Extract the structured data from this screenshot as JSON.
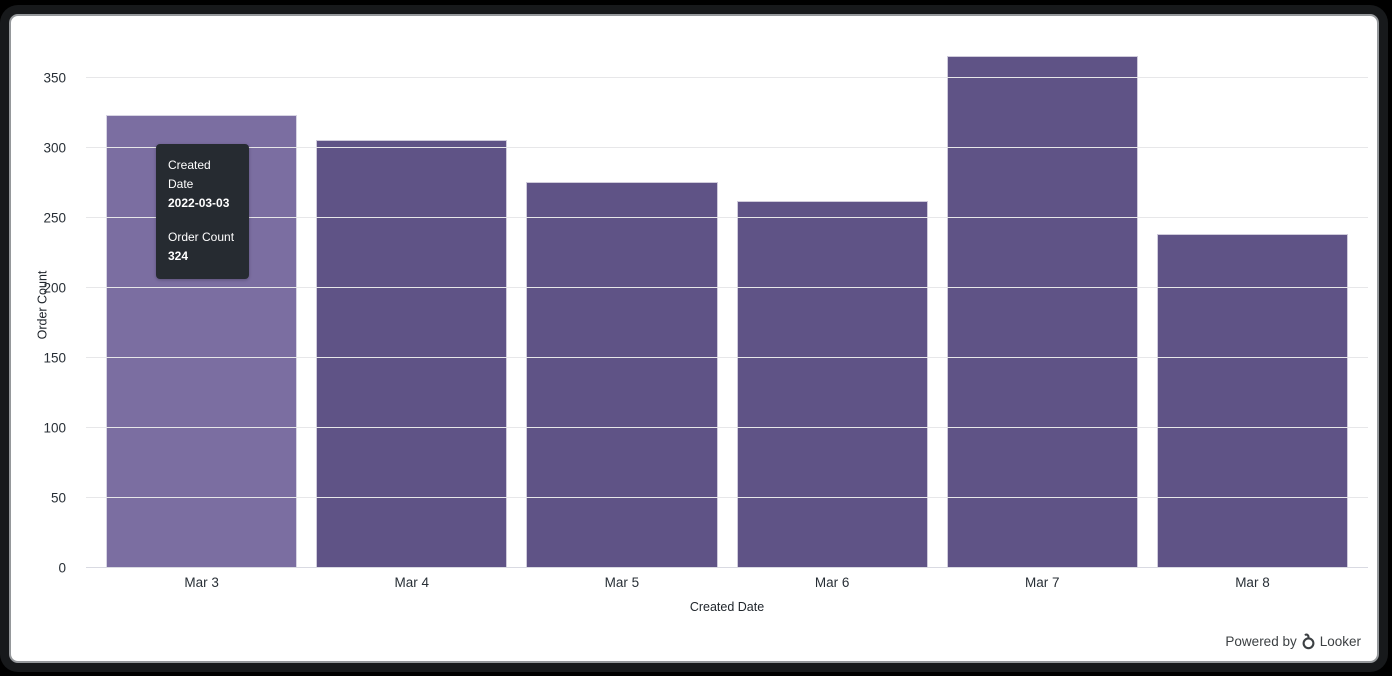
{
  "chart_data": {
    "type": "bar",
    "title": "",
    "categories": [
      "Mar 3",
      "Mar 4",
      "Mar 5",
      "Mar 6",
      "Mar 7",
      "Mar 8"
    ],
    "values": [
      324,
      306,
      276,
      262,
      366,
      239
    ],
    "xlabel": "Created Date",
    "ylabel": "Order Count",
    "ylim": [
      0,
      350
    ],
    "yticks": [
      0,
      50,
      100,
      150,
      200,
      250,
      300,
      350
    ],
    "grid": "horizontal",
    "legend": "none",
    "highlight_index": 0
  },
  "tooltip": {
    "rows": [
      {
        "label": "Created Date",
        "value": "2022-03-03"
      },
      {
        "label": "Order Count",
        "value": "324"
      }
    ]
  },
  "footer": {
    "powered_by": "Powered by",
    "brand": "Looker"
  },
  "colors": {
    "bar": "#5f5386",
    "bar_hover": "#7b6ea1",
    "bar_border": "rgba(255,255,255,0.7)",
    "tooltip_bg": "#262b31",
    "gridline": "#e7e7e9",
    "frame_rim": "#17191b",
    "footer_text": "#3c4043"
  }
}
